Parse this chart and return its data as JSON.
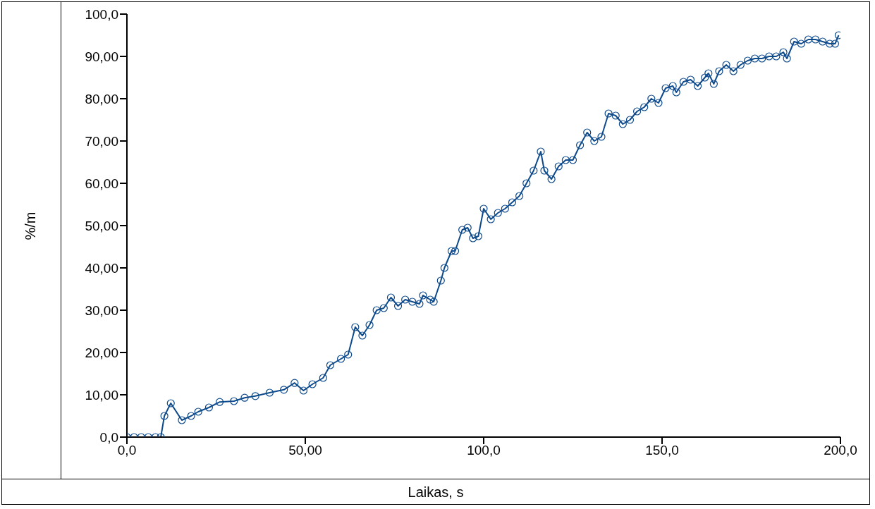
{
  "chart_data": {
    "type": "line",
    "xlabel": "Laikas, s",
    "ylabel": "%/m",
    "xlim": [
      0,
      200
    ],
    "ylim": [
      0,
      100
    ],
    "xticks": [
      {
        "value": 0,
        "label": "0,0"
      },
      {
        "value": 50,
        "label": "50,00"
      },
      {
        "value": 100,
        "label": "100,0"
      },
      {
        "value": 150,
        "label": "150,0"
      },
      {
        "value": 200,
        "label": "200,0"
      }
    ],
    "yticks": [
      {
        "value": 0,
        "label": "0,0"
      },
      {
        "value": 10,
        "label": "10,00"
      },
      {
        "value": 20,
        "label": "20,00"
      },
      {
        "value": 30,
        "label": "30,00"
      },
      {
        "value": 40,
        "label": "40,00"
      },
      {
        "value": 50,
        "label": "50,00"
      },
      {
        "value": 60,
        "label": "60,00"
      },
      {
        "value": 70,
        "label": "70,00"
      },
      {
        "value": 80,
        "label": "80,00"
      },
      {
        "value": 90,
        "label": "90,00"
      },
      {
        "value": 100,
        "label": "100,0"
      }
    ],
    "grid": false,
    "legend": false,
    "marker": "circle",
    "line_style": "solid",
    "series": [
      {
        "color": "#0d4a8c",
        "x": [
          0,
          2,
          4,
          6,
          8,
          9.5,
          10.5,
          12.3,
          15.4,
          18,
          20,
          23,
          26,
          30,
          33,
          36,
          40,
          44,
          47,
          49.5,
          52,
          55,
          57,
          60,
          62,
          64,
          66,
          68,
          70,
          72,
          74,
          76,
          78,
          80,
          82,
          83,
          85,
          86,
          88,
          89,
          91,
          92,
          94,
          95.5,
          97,
          98.5,
          100,
          102,
          104,
          106,
          108,
          110,
          112,
          114,
          116,
          117,
          119,
          121,
          123,
          125,
          127,
          129,
          131,
          133,
          135,
          137,
          139,
          141,
          143,
          145,
          147,
          149,
          151,
          153,
          154,
          156,
          158,
          160,
          162,
          163,
          164.5,
          166,
          168,
          170,
          172,
          174,
          176,
          178,
          180,
          182,
          184,
          185,
          187,
          189,
          191,
          193,
          195,
          197,
          198.5,
          199.5
        ],
        "values": [
          0,
          0,
          0,
          0,
          0,
          0,
          5,
          8,
          4,
          5,
          6,
          7,
          8.3,
          8.5,
          9.3,
          9.7,
          10.5,
          11.2,
          12.8,
          11,
          12.5,
          14,
          17,
          18.5,
          19.5,
          26,
          24,
          26.5,
          30,
          30.5,
          33,
          31,
          32.5,
          32,
          31.5,
          33.5,
          32.5,
          32,
          37,
          40,
          44,
          44,
          49,
          49.5,
          47,
          47.5,
          54,
          51.5,
          53,
          54,
          55.5,
          57,
          60,
          63,
          67.5,
          63,
          61,
          64,
          65.5,
          65.5,
          69,
          72,
          70,
          71,
          76.5,
          76,
          74,
          75,
          77,
          78,
          80,
          79,
          82.5,
          83,
          81.5,
          84,
          84.5,
          83,
          85,
          86,
          83.5,
          86.5,
          88,
          86.5,
          88,
          89,
          89.5,
          89.5,
          90,
          90,
          91,
          89.5,
          93.5,
          93,
          94,
          94,
          93.5,
          93,
          93,
          95
        ]
      }
    ]
  }
}
